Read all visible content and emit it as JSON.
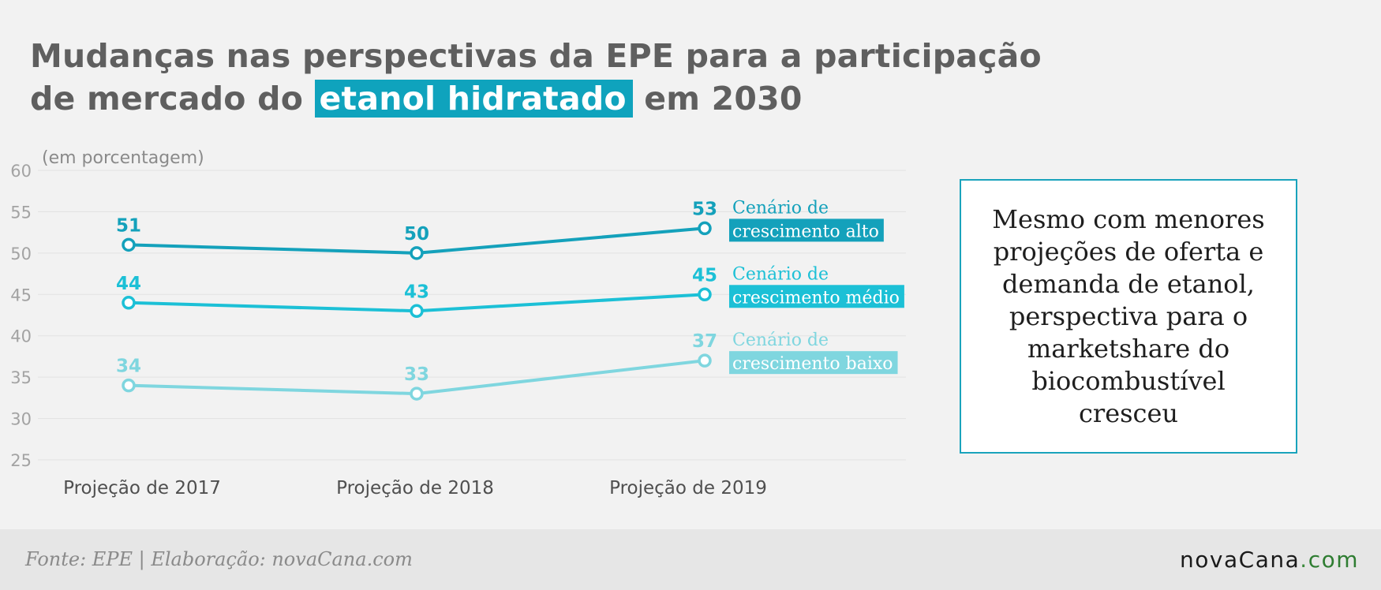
{
  "title": {
    "line1": "Mudanças nas perspectivas da EPE para a participação",
    "line2_pre": "de mercado do",
    "line2_highlight": "etanol hidratado",
    "line2_post": "em 2030"
  },
  "callout": {
    "text": "Mesmo com menores projeções de oferta e demanda de etanol, perspectiva para o marketshare do biocombustível cresceu"
  },
  "footer": {
    "source": "Fonte: EPE | Elaboração: novaCana.com",
    "logo_nova": "nova",
    "logo_cana": "Cana",
    "logo_dot": ".",
    "logo_com": "com"
  },
  "chart_data": {
    "type": "line",
    "unit_label": "(em porcentagem)",
    "categories": [
      "Projeção de 2017",
      "Projeção de 2018",
      "Projeção de 2019"
    ],
    "ylim": [
      25,
      60
    ],
    "yticks": [
      25,
      30,
      35,
      40,
      45,
      50,
      55,
      60
    ],
    "grid": true,
    "series": [
      {
        "label_line1": "Cenário de",
        "label_line2": "crescimento alto",
        "values": [
          51,
          50,
          53
        ],
        "color": "#14a1bb"
      },
      {
        "label_line1": "Cenário de",
        "label_line2": "crescimento médio",
        "values": [
          44,
          43,
          45
        ],
        "color": "#1cc0d6"
      },
      {
        "label_line1": "Cenário de",
        "label_line2": "crescimento baixo",
        "values": [
          34,
          33,
          37
        ],
        "color": "#7fd6df"
      }
    ]
  }
}
